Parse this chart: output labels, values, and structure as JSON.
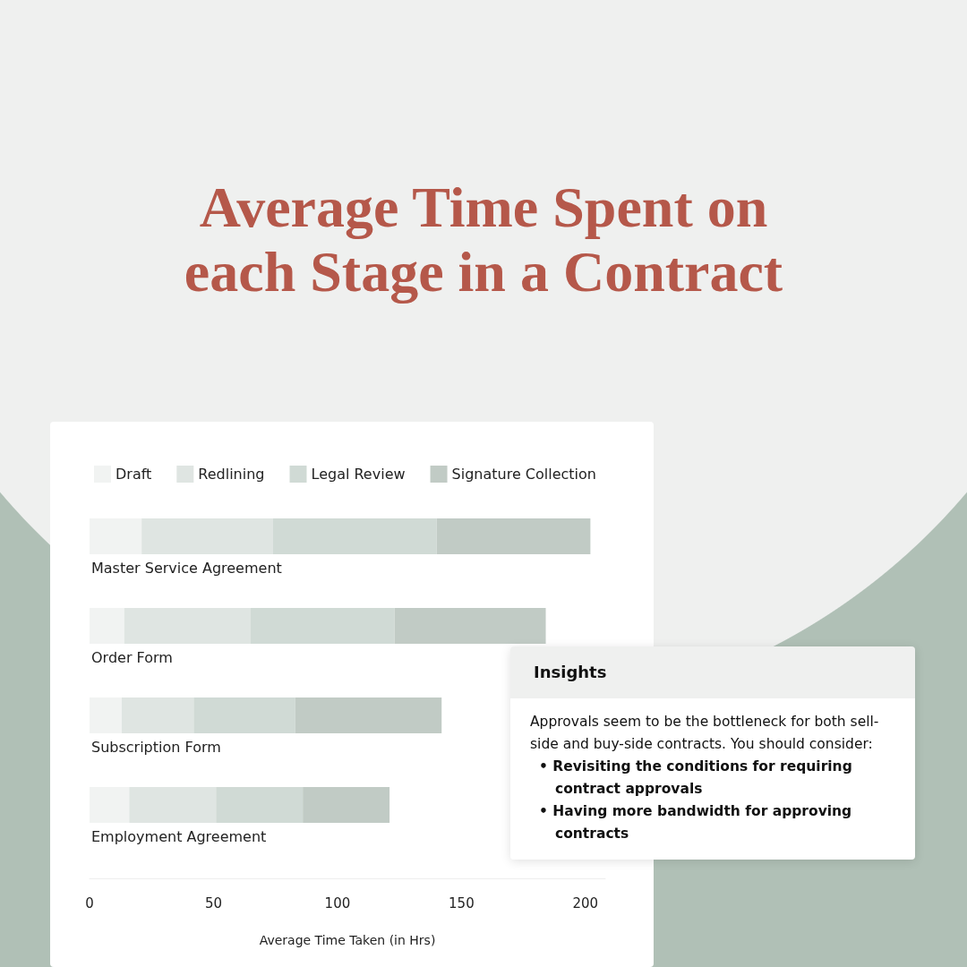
{
  "chart_data": {
    "type": "bar",
    "orientation": "horizontal",
    "stacked": true,
    "title": "Average Time Spent on each Stage in a Contract",
    "xlabel": "Average Time Taken (in Hrs)",
    "categories": [
      "Master Service Agreement",
      "Order Form",
      "Subscription Form",
      "Employment Agreement"
    ],
    "series": [
      {
        "name": "Draft",
        "color": "#f1f3f2",
        "values": [
          21,
          14,
          13,
          16
        ]
      },
      {
        "name": "Redlining",
        "color": "#dfe5e2",
        "values": [
          53,
          51,
          29,
          35
        ]
      },
      {
        "name": "Legal Review",
        "color": "#d0dad5",
        "values": [
          66,
          58,
          41,
          35
        ]
      },
      {
        "name": "Signature Collection",
        "color": "#c1cbc5",
        "values": [
          62,
          61,
          59,
          35
        ]
      }
    ],
    "xlim": [
      0,
      208
    ],
    "xticks": [
      0,
      50,
      100,
      150,
      200
    ],
    "legend": "top left",
    "grid": false,
    "annotations": [
      "Insights",
      "Approvals seem to be the bottleneck for both sell-side and buy-side contracts. You should consider:",
      "• Revisiting the conditions for requiring contract approvals",
      "• Having more bandwidth for approving contracts"
    ]
  }
}
